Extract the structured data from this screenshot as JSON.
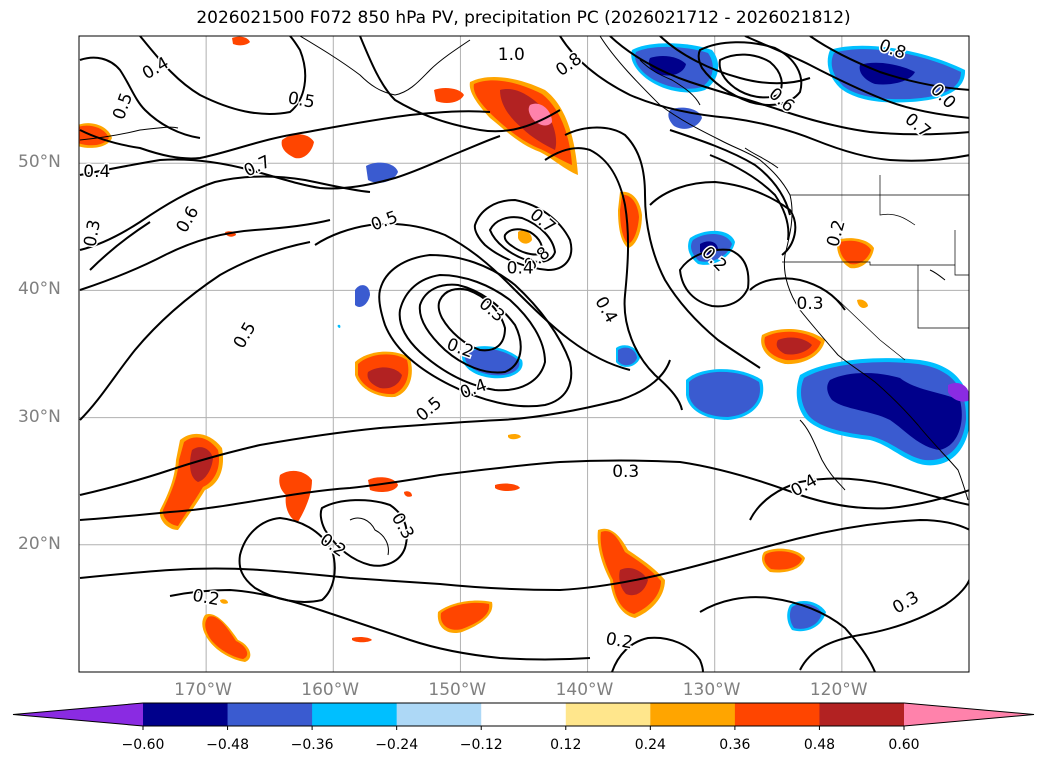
{
  "title": "2026021500 F072 850 hPa PV, precipitation PC (2026021712 - 2026021812)",
  "map": {
    "lon_range": [
      -180,
      -110
    ],
    "lat_range": [
      10,
      60
    ],
    "grid": true,
    "lat_ticks": [
      {
        "value": 50,
        "label": "50°N"
      },
      {
        "value": 40,
        "label": "40°N"
      },
      {
        "value": 30,
        "label": "30°N"
      },
      {
        "value": 20,
        "label": "20°N"
      }
    ],
    "lon_ticks": [
      {
        "value": -170,
        "label": "170°W"
      },
      {
        "value": -160,
        "label": "160°W"
      },
      {
        "value": -150,
        "label": "150°W"
      },
      {
        "value": -140,
        "label": "140°W"
      },
      {
        "value": -130,
        "label": "130°W"
      },
      {
        "value": -120,
        "label": "120°W"
      }
    ],
    "contour_labels": [
      {
        "text": "0.4",
        "lon": -174.0,
        "lat": 57.5,
        "rot": -30
      },
      {
        "text": "0.5",
        "lon": -176.6,
        "lat": 54.5,
        "rot": -70
      },
      {
        "text": "0.5",
        "lon": -162.5,
        "lat": 55.0,
        "rot": 10
      },
      {
        "text": "1.0",
        "lon": -146.0,
        "lat": 58.6,
        "rot": 0
      },
      {
        "text": "0.8",
        "lon": -141.5,
        "lat": 57.8,
        "rot": -35
      },
      {
        "text": "0.8",
        "lon": -116.0,
        "lat": 59.0,
        "rot": 20
      },
      {
        "text": "0.6",
        "lon": -124.7,
        "lat": 55.0,
        "rot": 40
      },
      {
        "text": "0.7",
        "lon": -114.0,
        "lat": 53.0,
        "rot": 40
      },
      {
        "text": "0.0",
        "lon": -112.0,
        "lat": 55.3,
        "rot": 45
      },
      {
        "text": "0.4",
        "lon": -178.6,
        "lat": 49.4,
        "rot": 0
      },
      {
        "text": "0.7",
        "lon": -166.0,
        "lat": 49.8,
        "rot": -25
      },
      {
        "text": "0.6",
        "lon": -171.5,
        "lat": 45.6,
        "rot": -60
      },
      {
        "text": "0.3",
        "lon": -179.0,
        "lat": 44.5,
        "rot": -80
      },
      {
        "text": "0.5",
        "lon": -156.0,
        "lat": 45.5,
        "rot": -20
      },
      {
        "text": "0.7",
        "lon": -143.5,
        "lat": 45.5,
        "rot": 40
      },
      {
        "text": "0.8",
        "lon": -144.0,
        "lat": 42.5,
        "rot": -40
      },
      {
        "text": "0.3",
        "lon": -147.5,
        "lat": 38.5,
        "rot": 40
      },
      {
        "text": "0.2",
        "lon": -150.0,
        "lat": 35.5,
        "rot": 20
      },
      {
        "text": "0.4",
        "lon": -145.3,
        "lat": 41.8,
        "rot": 0
      },
      {
        "text": "0.4",
        "lon": -138.5,
        "lat": 38.5,
        "rot": 60
      },
      {
        "text": "0.4",
        "lon": -149.0,
        "lat": 32.3,
        "rot": -20
      },
      {
        "text": "0.5",
        "lon": -152.5,
        "lat": 30.7,
        "rot": -40
      },
      {
        "text": "0.5",
        "lon": -167.0,
        "lat": 36.5,
        "rot": -60
      },
      {
        "text": "0.2",
        "lon": -130.0,
        "lat": 42.5,
        "rot": 45
      },
      {
        "text": "0.2",
        "lon": -120.5,
        "lat": 44.5,
        "rot": -75
      },
      {
        "text": "0.3",
        "lon": -122.5,
        "lat": 39.0,
        "rot": 0
      },
      {
        "text": "0.3",
        "lon": -137.0,
        "lat": 25.8,
        "rot": 0
      },
      {
        "text": "0.4",
        "lon": -123.0,
        "lat": 24.7,
        "rot": -30
      },
      {
        "text": "0.2",
        "lon": -160.0,
        "lat": 20.0,
        "rot": 35
      },
      {
        "text": "0.3",
        "lon": -154.5,
        "lat": 21.5,
        "rot": 60
      },
      {
        "text": "0.2",
        "lon": -170.0,
        "lat": 15.9,
        "rot": 10
      },
      {
        "text": "0.2",
        "lon": -137.5,
        "lat": 12.5,
        "rot": 10
      },
      {
        "text": "0.3",
        "lon": -115.0,
        "lat": 15.5,
        "rot": -30
      }
    ]
  },
  "colorbar": {
    "labels": [
      "−0.60",
      "−0.48",
      "−0.36",
      "−0.24",
      "−0.12",
      "0.12",
      "0.24",
      "0.36",
      "0.48",
      "0.60"
    ],
    "colors": [
      "#8a2be2",
      "#00008b",
      "#3a5bd0",
      "#00bfff",
      "#add8f6",
      "#ffffff",
      "#ffe68c",
      "#ffa500",
      "#ff4500",
      "#b22222",
      "#ff82ab"
    ]
  },
  "colors": {
    "contour": "#000000",
    "grid": "#b0b0b0",
    "tick_label": "#808080"
  }
}
